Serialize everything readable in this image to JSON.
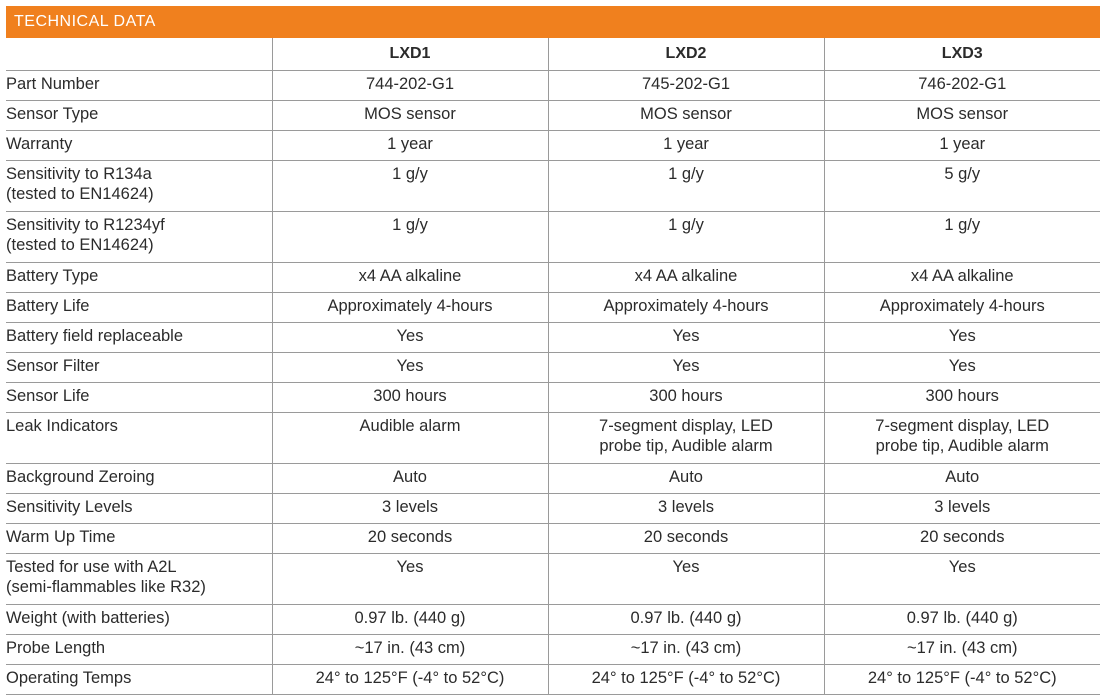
{
  "banner_title": "TECHNICAL DATA",
  "colors": {
    "banner": "#f0801e",
    "grid": "#9a9a9a",
    "text": "#2b2b2b"
  },
  "columns": [
    "LXD1",
    "LXD2",
    "LXD3"
  ],
  "rows": [
    {
      "label": "Part Number",
      "values": [
        "744-202-G1",
        "745-202-G1",
        "746-202-G1"
      ]
    },
    {
      "label": "Sensor Type",
      "values": [
        "MOS sensor",
        "MOS sensor",
        "MOS sensor"
      ]
    },
    {
      "label": "Warranty",
      "values": [
        "1 year",
        "1 year",
        "1 year"
      ]
    },
    {
      "label": "Sensitivity to R134a\n(tested to EN14624)",
      "values": [
        "1 g/y",
        "1 g/y",
        "5 g/y"
      ]
    },
    {
      "label": "Sensitivity to R1234yf\n(tested to EN14624)",
      "values": [
        "1 g/y",
        "1 g/y",
        "1 g/y"
      ]
    },
    {
      "label": "Battery Type",
      "values": [
        "x4 AA alkaline",
        "x4 AA alkaline",
        "x4 AA alkaline"
      ]
    },
    {
      "label": "Battery Life",
      "values": [
        "Approximately 4-hours",
        "Approximately 4-hours",
        "Approximately 4-hours"
      ]
    },
    {
      "label": "Battery field replaceable",
      "values": [
        "Yes",
        "Yes",
        "Yes"
      ]
    },
    {
      "label": "Sensor Filter",
      "values": [
        "Yes",
        "Yes",
        "Yes"
      ]
    },
    {
      "label": "Sensor Life",
      "values": [
        "300 hours",
        "300 hours",
        "300 hours"
      ]
    },
    {
      "label": "Leak Indicators",
      "values": [
        "Audible alarm",
        "7-segment display, LED\nprobe tip, Audible alarm",
        "7-segment display, LED\nprobe tip, Audible alarm"
      ]
    },
    {
      "label": "Background Zeroing",
      "values": [
        "Auto",
        "Auto",
        "Auto"
      ]
    },
    {
      "label": "Sensitivity Levels",
      "values": [
        "3 levels",
        "3 levels",
        "3 levels"
      ]
    },
    {
      "label": "Warm Up Time",
      "values": [
        "20 seconds",
        "20 seconds",
        "20 seconds"
      ]
    },
    {
      "label": "Tested for use with A2L\n(semi-flammables like R32)",
      "values": [
        "Yes",
        "Yes",
        "Yes"
      ]
    },
    {
      "label": "Weight (with batteries)",
      "values": [
        "0.97 lb. (440 g)",
        "0.97 lb. (440 g)",
        "0.97 lb. (440 g)"
      ]
    },
    {
      "label": "Probe Length",
      "values": [
        "~17 in. (43 cm)",
        "~17 in. (43 cm)",
        "~17 in. (43 cm)"
      ]
    },
    {
      "label": "Operating Temps",
      "values": [
        "24° to 125°F (-4° to 52°C)",
        "24° to 125°F (-4° to 52°C)",
        "24° to 125°F (-4° to 52°C)"
      ]
    }
  ]
}
